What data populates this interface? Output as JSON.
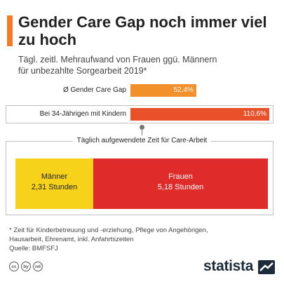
{
  "title": "Gender Care Gap noch immer viel zu hoch",
  "subtitle_line1": "Tägl. zeitl. Mehraufwand von Frauen ggü. Männern",
  "subtitle_line2": "für unbezahlte Sorgearbeit 2019*",
  "colors": {
    "accent": "#f47b2a",
    "bar_avg": "#f2902c",
    "bar_parents": "#e8512a",
    "men": "#f6d21a",
    "women": "#e02b2b",
    "brand_dark": "#1e2c3a"
  },
  "chart_data": [
    {
      "type": "bar",
      "categories": [
        "Ø Gender Care Gap",
        "Bei 34-Jährigen mit Kindern"
      ],
      "values": [
        52.4,
        110.6
      ],
      "value_labels": [
        "52,4%",
        "110,6%"
      ],
      "unit": "%"
    },
    {
      "type": "bar",
      "title": "Täglich aufgewendete Zeit für Care-Arbeit",
      "categories": [
        "Männer",
        "Frauen"
      ],
      "values": [
        2.31,
        5.18
      ],
      "value_labels": [
        "2,31 Stunden",
        "5,18 Stunden"
      ],
      "unit": "Stunden"
    }
  ],
  "footnote_line1": "* Zeit für Kinderbetreuung und -erziehung, Pflege von Angehörigen,",
  "footnote_line2": "Hausarbeit, Ehrenamt, inkl. Anfahrtszeiten",
  "source": "Quelle: BMFSFJ",
  "license_icons": [
    "cc",
    "by",
    "nd"
  ],
  "brand": "statista"
}
